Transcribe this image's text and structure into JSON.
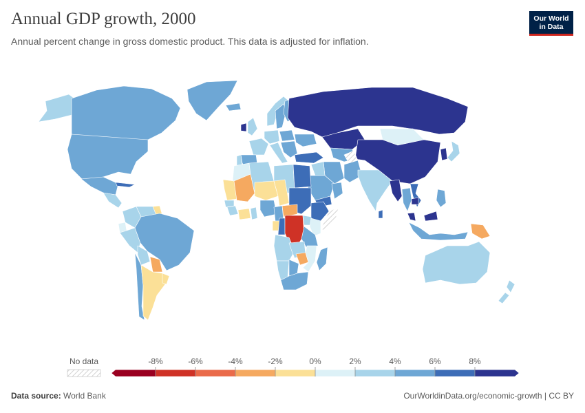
{
  "header": {
    "title": "Annual GDP growth, 2000",
    "subtitle": "Annual percent change in gross domestic product. This data is adjusted for inflation."
  },
  "logo": {
    "line1": "Our World",
    "line2": "in Data"
  },
  "legend": {
    "no_data_label": "No data",
    "ticks": [
      "-8%",
      "-6%",
      "-4%",
      "-2%",
      "0%",
      "2%",
      "4%",
      "6%",
      "8%"
    ],
    "colors": [
      "#9a0020",
      "#cf3226",
      "#ea6b4a",
      "#f5a960",
      "#fbe097",
      "#ddf1f7",
      "#a8d4ea",
      "#6ea7d5",
      "#3d6db7",
      "#2c348f"
    ]
  },
  "footer": {
    "source_label": "Data source:",
    "source_value": "World Bank",
    "url": "OurWorldinData.org/economic-growth | CC BY"
  },
  "chart_data": {
    "type": "choropleth",
    "title": "Annual GDP growth, 2000",
    "unit": "%",
    "bins": [
      -10,
      -8,
      -6,
      -4,
      -2,
      0,
      2,
      4,
      6,
      8,
      10
    ],
    "regions": [
      {
        "name": "Greenland",
        "value": 5.5
      },
      {
        "name": "Alaska",
        "value": 3.5
      },
      {
        "name": "Canada",
        "value": 5.2
      },
      {
        "name": "United States",
        "value": 4.1
      },
      {
        "name": "Mexico",
        "value": 4.9
      },
      {
        "name": "Central America",
        "value": 3.8
      },
      {
        "name": "Cuba",
        "value": 6.0
      },
      {
        "name": "Colombia",
        "value": 2.9
      },
      {
        "name": "Venezuela",
        "value": 3.7
      },
      {
        "name": "Guyana",
        "value": -1.4
      },
      {
        "name": "Ecuador",
        "value": 1.1
      },
      {
        "name": "Peru",
        "value": 2.7
      },
      {
        "name": "Brazil",
        "value": 4.4
      },
      {
        "name": "Bolivia",
        "value": 2.5
      },
      {
        "name": "Paraguay",
        "value": -2.3
      },
      {
        "name": "Chile",
        "value": 5.3
      },
      {
        "name": "Argentina",
        "value": -0.8
      },
      {
        "name": "Uruguay",
        "value": -1.9
      },
      {
        "name": "Iceland",
        "value": 4.5
      },
      {
        "name": "Norway",
        "value": 3.2
      },
      {
        "name": "Sweden",
        "value": 4.7
      },
      {
        "name": "Finland",
        "value": 5.7
      },
      {
        "name": "United Kingdom",
        "value": 3.7
      },
      {
        "name": "Ireland",
        "value": 9.4
      },
      {
        "name": "France",
        "value": 3.9
      },
      {
        "name": "Spain",
        "value": 5.1
      },
      {
        "name": "Portugal",
        "value": 3.8
      },
      {
        "name": "Germany",
        "value": 2.9
      },
      {
        "name": "Italy",
        "value": 3.8
      },
      {
        "name": "Poland",
        "value": 4.6
      },
      {
        "name": "Balkans",
        "value": 4.5
      },
      {
        "name": "Ukraine",
        "value": 5.9
      },
      {
        "name": "Turkey",
        "value": 6.8
      },
      {
        "name": "Russia",
        "value": 10.0
      },
      {
        "name": "Kazakhstan",
        "value": 9.8
      },
      {
        "name": "Central Asia",
        "value": 5.5
      },
      {
        "name": "Mongolia",
        "value": 1.1
      },
      {
        "name": "China",
        "value": 8.5
      },
      {
        "name": "Korea",
        "value": 8.9
      },
      {
        "name": "Japan",
        "value": 2.8
      },
      {
        "name": "Iran",
        "value": 5.1
      },
      {
        "name": "Iraq",
        "value": 3.0
      },
      {
        "name": "Saudi Arabia",
        "value": 5.6
      },
      {
        "name": "Yemen",
        "value": 6.2
      },
      {
        "name": "Oman",
        "value": 5.4
      },
      {
        "name": "Afghanistan",
        "value": null
      },
      {
        "name": "Pakistan",
        "value": 4.3
      },
      {
        "name": "India",
        "value": 3.8
      },
      {
        "name": "Sri Lanka",
        "value": 6.0
      },
      {
        "name": "Myanmar",
        "value": 13.7
      },
      {
        "name": "Thailand",
        "value": 4.5
      },
      {
        "name": "Vietnam",
        "value": 6.8
      },
      {
        "name": "Cambodia",
        "value": 8.8
      },
      {
        "name": "Malaysia",
        "value": 8.9
      },
      {
        "name": "Philippines",
        "value": 4.4
      },
      {
        "name": "Indonesia",
        "value": 5.0
      },
      {
        "name": "Papua New Guinea",
        "value": -2.5
      },
      {
        "name": "Australia",
        "value": 3.9
      },
      {
        "name": "New Zealand",
        "value": 2.2
      },
      {
        "name": "Morocco",
        "value": 1.6
      },
      {
        "name": "Algeria",
        "value": 3.8
      },
      {
        "name": "Libya",
        "value": 3.7
      },
      {
        "name": "Egypt",
        "value": 6.4
      },
      {
        "name": "Mauritania",
        "value": -0.4
      },
      {
        "name": "Mali",
        "value": -3.2
      },
      {
        "name": "Niger",
        "value": -1.4
      },
      {
        "name": "Chad",
        "value": -0.9
      },
      {
        "name": "Sudan",
        "value": 6.1
      },
      {
        "name": "Ethiopia",
        "value": 6.1
      },
      {
        "name": "Somalia",
        "value": null
      },
      {
        "name": "Senegal",
        "value": 3.2
      },
      {
        "name": "Guinea",
        "value": 2.5
      },
      {
        "name": "Cote d'Ivoire",
        "value": -2.0
      },
      {
        "name": "Ghana",
        "value": 3.7
      },
      {
        "name": "Nigeria",
        "value": 5.0
      },
      {
        "name": "Cameroon",
        "value": 4.2
      },
      {
        "name": "Central African Republic",
        "value": -2.5
      },
      {
        "name": "Gabon",
        "value": -1.9
      },
      {
        "name": "Congo",
        "value": 7.6
      },
      {
        "name": "DR Congo",
        "value": -6.9
      },
      {
        "name": "Uganda",
        "value": 3.1
      },
      {
        "name": "Kenya",
        "value": 0.6
      },
      {
        "name": "Tanzania",
        "value": 4.5
      },
      {
        "name": "Angola",
        "value": 3.0
      },
      {
        "name": "Zambia",
        "value": 3.9
      },
      {
        "name": "Zimbabwe",
        "value": -3.1
      },
      {
        "name": "Mozambique",
        "value": 1.1
      },
      {
        "name": "Madagascar",
        "value": 4.8
      },
      {
        "name": "Namibia",
        "value": 3.5
      },
      {
        "name": "Botswana",
        "value": 5.9
      },
      {
        "name": "South Africa",
        "value": 4.2
      }
    ]
  }
}
